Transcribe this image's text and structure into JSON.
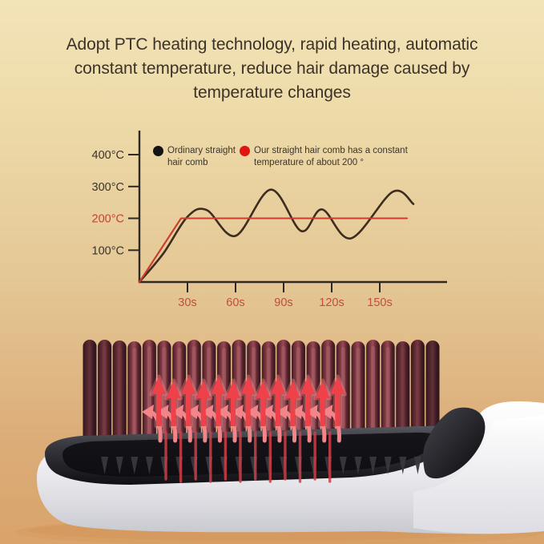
{
  "headline": {
    "text": "Adopt PTC heating technology, rapid heating, automatic constant temperature, reduce hair damage caused by temperature changes"
  },
  "chart_data": {
    "type": "line",
    "title": "",
    "x_unit": "s",
    "y_unit": "°C",
    "grid": false,
    "legend_position": "top",
    "xlim": [
      0,
      192
    ],
    "ylim": [
      0,
      478
    ],
    "x_ticks": {
      "labels": [
        "30s",
        "60s",
        "90s",
        "120s",
        "150s"
      ],
      "values": [
        30,
        60,
        90,
        120,
        150
      ],
      "color": "#c14e38"
    },
    "y_ticks": {
      "labels": [
        "400°C",
        "300°C",
        "200°C",
        "100°C"
      ],
      "values": [
        400,
        300,
        200,
        100
      ],
      "color": "#3a332a",
      "highlight": {
        "label": "200°C",
        "color": "#c0452f"
      }
    },
    "axis_color": "#2e2922",
    "series": [
      {
        "name": "Ordinary straight hair comb",
        "color": "#3d2d20",
        "smooth": true,
        "points": [
          [
            0,
            0
          ],
          [
            15,
            90
          ],
          [
            30,
            205
          ],
          [
            42,
            226
          ],
          [
            60,
            145
          ],
          [
            82,
            290
          ],
          [
            101,
            160
          ],
          [
            114,
            228
          ],
          [
            132,
            137
          ],
          [
            158,
            283
          ],
          [
            171,
            245
          ]
        ]
      },
      {
        "name": "Our straight hair comb has a constant temperature of about 200 °",
        "color": "#cd3b2e",
        "smooth": false,
        "points": [
          [
            0,
            0
          ],
          [
            26,
            200
          ],
          [
            167,
            200
          ]
        ]
      }
    ]
  },
  "legend": {
    "items": [
      {
        "marker": "dot",
        "marker_color": "#141414",
        "label": "Ordinary straight hair comb"
      },
      {
        "marker": "dot",
        "marker_color": "#e11414",
        "label": "Our straight hair comb has a constant temperature of about 200 °"
      }
    ]
  },
  "product": {
    "description": "Electric hair straightener brush with heated maroon bristles, red heat arrows rising between the teeth, white body and handle",
    "bristle_count": 24,
    "up_arrow_count": 13,
    "hook_arrow_count": 13,
    "strand_count": 12,
    "colors": {
      "body_light": "#ffffff",
      "body_dark": "#c8c8cf",
      "plate_top": "#56565e",
      "plate_bottom": "#101014",
      "bristle_dark": "#401c24",
      "bristle_mid": "#9a4a54",
      "bristle_deep": "#35161d",
      "bristle_highlight": "#b06a70",
      "arrow_red": "#ee4149",
      "arrow_glow": "#f6898d",
      "arrow_pink": "#f2848a",
      "strand_red": "#cf3f48",
      "tip_gray": "#38383d",
      "glow": "#d1955a"
    }
  },
  "background": {
    "top": "#f3e3b8",
    "upper": "#eedcab",
    "middle": "#e4c794",
    "lower": "#dcad79",
    "bottom": "#d9a36b"
  }
}
